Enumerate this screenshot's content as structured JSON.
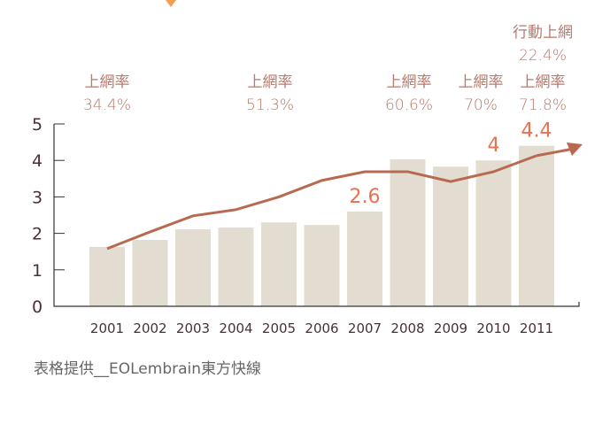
{
  "chart_data": {
    "type": "bar+line",
    "categories": [
      "2001",
      "2002",
      "2003",
      "2004",
      "2005",
      "2006",
      "2007",
      "2008",
      "2009",
      "2010",
      "2011"
    ],
    "series": [
      {
        "type": "bar",
        "values": [
          1.63,
          1.82,
          2.11,
          2.16,
          2.3,
          2.23,
          2.6,
          4.03,
          3.83,
          4.0,
          4.4
        ],
        "color": "#e2ddd0"
      },
      {
        "type": "line",
        "values": [
          1.58,
          2.04,
          2.48,
          2.65,
          3.0,
          3.45,
          3.69,
          3.69,
          3.42,
          3.69,
          4.13
        ],
        "color": "#b86a50",
        "arrow": true
      }
    ],
    "data_labels": [
      {
        "category": "2007",
        "text": "2.6"
      },
      {
        "category": "2010",
        "text": "4"
      },
      {
        "category": "2011",
        "text": "4.4"
      }
    ],
    "data_label_color": "#e8714f",
    "yticks": [
      "0",
      "1",
      "2",
      "3",
      "4",
      "5"
    ],
    "ylim": [
      0,
      5
    ],
    "annotations": [
      {
        "category": "2001",
        "label": "上網率",
        "value": "34.4%"
      },
      {
        "category": "2005",
        "label": "上網率",
        "value": "51.3%"
      },
      {
        "category": "2008",
        "label": "上網率",
        "value": "60.6%"
      },
      {
        "category": "2010",
        "label": "上網率",
        "value": "70%"
      },
      {
        "category": "2011",
        "label": "上網率",
        "value": "71.8%",
        "extra_label": "行動上網",
        "extra_value": "22.4%"
      }
    ],
    "source": "表格提供__EOLembrain東方快線",
    "grid": false
  }
}
